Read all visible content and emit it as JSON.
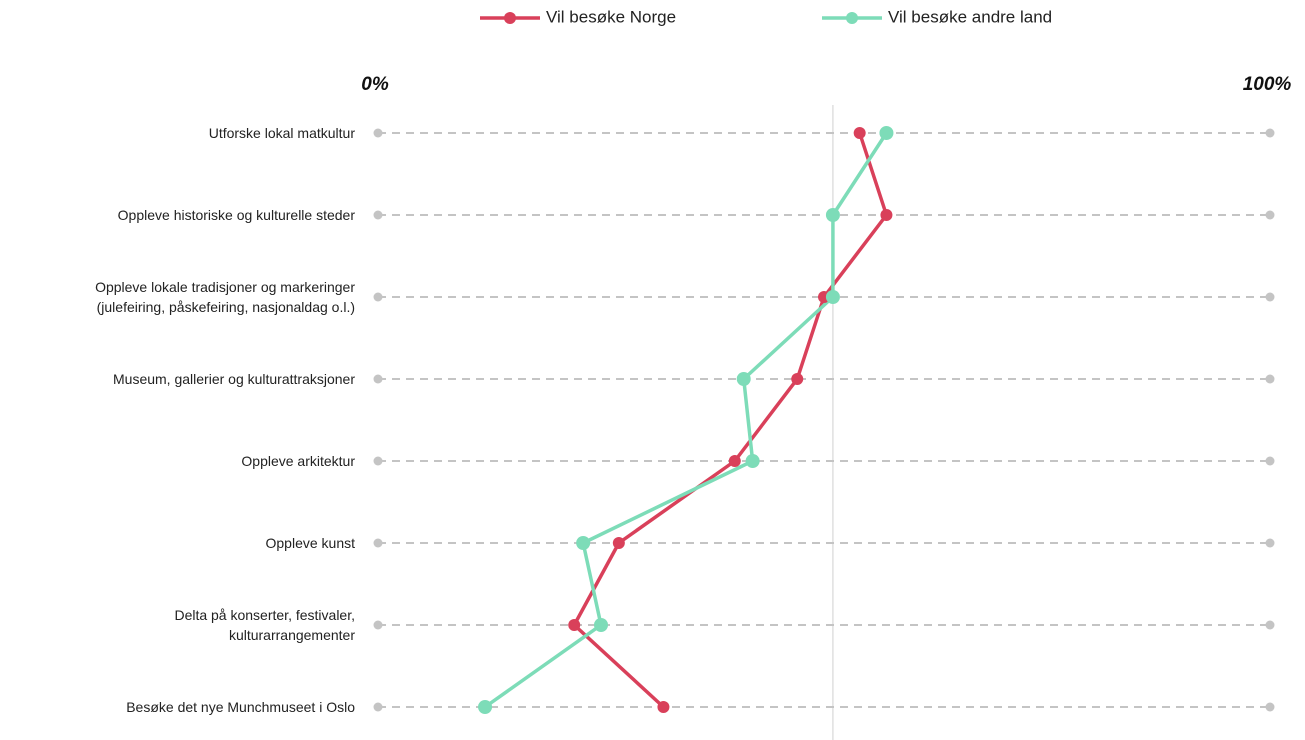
{
  "chart_data": {
    "type": "dot-line",
    "categories": [
      "Utforske lokal matkultur",
      "Oppleve historiske og kulturelle steder",
      "Oppleve lokale tradisjoner og markeringer\n(julefeiring, påskefeiring, nasjonaldag o.l.)",
      "Museum, gallerier og kulturattraksjoner",
      "Oppleve arkitektur",
      "Oppleve kunst",
      "Delta på konserter, festivaler,\nkulturarrangementer",
      "Besøke det nye Munchmuseet i Oslo"
    ],
    "series": [
      {
        "name": "Vil besøke Norge",
        "color": "#d9405a",
        "values": [
          54,
          57,
          50,
          47,
          40,
          27,
          22,
          32
        ]
      },
      {
        "name": "Vil besøke andre land",
        "color": "#7ddcb8",
        "values": [
          57,
          51,
          51,
          41,
          42,
          23,
          25,
          12
        ]
      }
    ],
    "xlim": [
      0,
      100
    ],
    "xticks": [
      {
        "value": 0,
        "label": "0%"
      },
      {
        "value": 100,
        "label": "100%"
      }
    ],
    "reference_line": 51,
    "legend": "top"
  }
}
